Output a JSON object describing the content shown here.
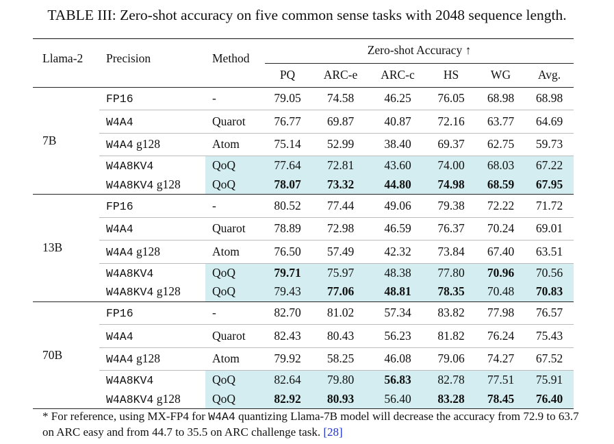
{
  "caption": "TABLE III: Zero-shot accuracy on five common sense tasks with 2048 sequence length.",
  "header": {
    "model": "Llama-2",
    "precision": "Precision",
    "method": "Method",
    "group": "Zero-shot Accuracy ↑",
    "columns": [
      "PQ",
      "ARC-e",
      "ARC-c",
      "HS",
      "WG",
      "Avg."
    ]
  },
  "groups": [
    {
      "model": "7B",
      "blocks": [
        {
          "highlight": false,
          "rows": [
            {
              "precision": {
                "code": "FP16"
              },
              "method": "-",
              "values": [
                "79.05",
                "74.58",
                "46.25",
                "76.05",
                "68.98",
                "68.98"
              ],
              "bold": []
            }
          ]
        },
        {
          "highlight": false,
          "rows": [
            {
              "precision": {
                "code": "W4A4"
              },
              "method": "Quarot",
              "values": [
                "76.77",
                "69.87",
                "40.87",
                "72.16",
                "63.77",
                "64.69"
              ],
              "bold": []
            }
          ]
        },
        {
          "highlight": false,
          "rows": [
            {
              "precision": {
                "code": "W4A4",
                "suffix": "g128"
              },
              "method": "Atom",
              "values": [
                "75.14",
                "52.99",
                "38.40",
                "69.37",
                "62.75",
                "59.73"
              ],
              "bold": []
            }
          ]
        },
        {
          "highlight": true,
          "rows": [
            {
              "precision": {
                "code": "W4A8KV4"
              },
              "method": "QoQ",
              "values": [
                "77.64",
                "72.81",
                "43.60",
                "74.00",
                "68.03",
                "67.22"
              ],
              "bold": []
            },
            {
              "precision": {
                "code": "W4A8KV4",
                "suffix": "g128"
              },
              "method": "QoQ",
              "values": [
                "78.07",
                "73.32",
                "44.80",
                "74.98",
                "68.59",
                "67.95"
              ],
              "bold": [
                0,
                1,
                2,
                3,
                4,
                5
              ]
            }
          ]
        }
      ]
    },
    {
      "model": "13B",
      "blocks": [
        {
          "highlight": false,
          "rows": [
            {
              "precision": {
                "code": "FP16"
              },
              "method": "-",
              "values": [
                "80.52",
                "77.44",
                "49.06",
                "79.38",
                "72.22",
                "71.72"
              ],
              "bold": []
            }
          ]
        },
        {
          "highlight": false,
          "rows": [
            {
              "precision": {
                "code": "W4A4"
              },
              "method": "Quarot",
              "values": [
                "78.89",
                "72.98",
                "46.59",
                "76.37",
                "70.24",
                "69.01"
              ],
              "bold": []
            }
          ]
        },
        {
          "highlight": false,
          "rows": [
            {
              "precision": {
                "code": "W4A4",
                "suffix": "g128"
              },
              "method": "Atom",
              "values": [
                "76.50",
                "57.49",
                "42.32",
                "73.84",
                "67.40",
                "63.51"
              ],
              "bold": []
            }
          ]
        },
        {
          "highlight": true,
          "rows": [
            {
              "precision": {
                "code": "W4A8KV4"
              },
              "method": "QoQ",
              "values": [
                "79.71",
                "75.97",
                "48.38",
                "77.80",
                "70.96",
                "70.56"
              ],
              "bold": [
                0,
                4
              ]
            },
            {
              "precision": {
                "code": "W4A8KV4",
                "suffix": "g128"
              },
              "method": "QoQ",
              "values": [
                "79.43",
                "77.06",
                "48.81",
                "78.35",
                "70.48",
                "70.83"
              ],
              "bold": [
                1,
                2,
                3,
                5
              ]
            }
          ]
        }
      ]
    },
    {
      "model": "70B",
      "blocks": [
        {
          "highlight": false,
          "rows": [
            {
              "precision": {
                "code": "FP16"
              },
              "method": "-",
              "values": [
                "82.70",
                "81.02",
                "57.34",
                "83.82",
                "77.98",
                "76.57"
              ],
              "bold": []
            }
          ]
        },
        {
          "highlight": false,
          "rows": [
            {
              "precision": {
                "code": "W4A4"
              },
              "method": "Quarot",
              "values": [
                "82.43",
                "80.43",
                "56.23",
                "81.82",
                "76.24",
                "75.43"
              ],
              "bold": []
            }
          ]
        },
        {
          "highlight": false,
          "rows": [
            {
              "precision": {
                "code": "W4A4",
                "suffix": "g128"
              },
              "method": "Atom",
              "values": [
                "79.92",
                "58.25",
                "46.08",
                "79.06",
                "74.27",
                "67.52"
              ],
              "bold": []
            }
          ]
        },
        {
          "highlight": true,
          "rows": [
            {
              "precision": {
                "code": "W4A8KV4"
              },
              "method": "QoQ",
              "values": [
                "82.64",
                "79.80",
                "56.83",
                "82.78",
                "77.51",
                "75.91"
              ],
              "bold": [
                2
              ]
            },
            {
              "precision": {
                "code": "W4A8KV4",
                "suffix": "g128"
              },
              "method": "QoQ",
              "values": [
                "82.92",
                "80.93",
                "56.40",
                "83.28",
                "78.45",
                "76.40"
              ],
              "bold": [
                0,
                1,
                3,
                4,
                5
              ]
            }
          ]
        }
      ]
    }
  ],
  "footnote": {
    "text1": "* For reference, using MX-FP4 for",
    "code": "W4A4",
    "text2": "quantizing Llama-7B model will decrease the accuracy from 72.9 to 63.7 on ARC easy and from 44.7 to 35.5 on ARC challenge task.",
    "ref": "[28]"
  }
}
